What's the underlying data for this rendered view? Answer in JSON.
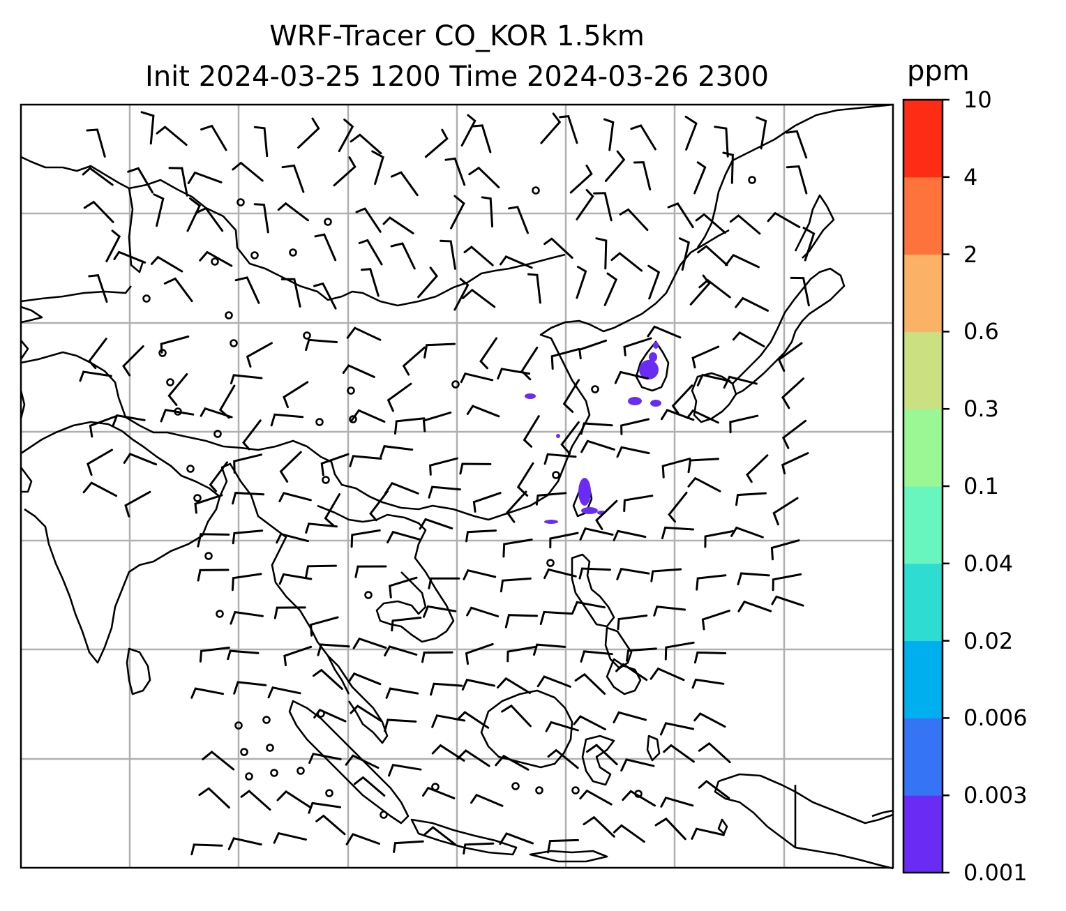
{
  "title": {
    "line1": "WRF-Tracer CO_KOR 1.5km",
    "line2": "Init 2024-03-25 1200 Time 2024-03-26 2300"
  },
  "colorbar": {
    "unit": "ppm",
    "ticks": [
      "0.001",
      "0.003",
      "0.006",
      "0.02",
      "0.04",
      "0.1",
      "0.3",
      "0.6",
      "2",
      "4",
      "10"
    ],
    "colors": [
      "#6a2cf5",
      "#3474f5",
      "#00b0ee",
      "#2edcd2",
      "#68f6be",
      "#9bf694",
      "#cbe081",
      "#fcb266",
      "#fe733c",
      "#fe2b15"
    ]
  },
  "map": {
    "gridlines": true,
    "coastline_color": "#000000",
    "tracer_color": "#6a2cf5",
    "tracer_level": "0.001"
  }
}
